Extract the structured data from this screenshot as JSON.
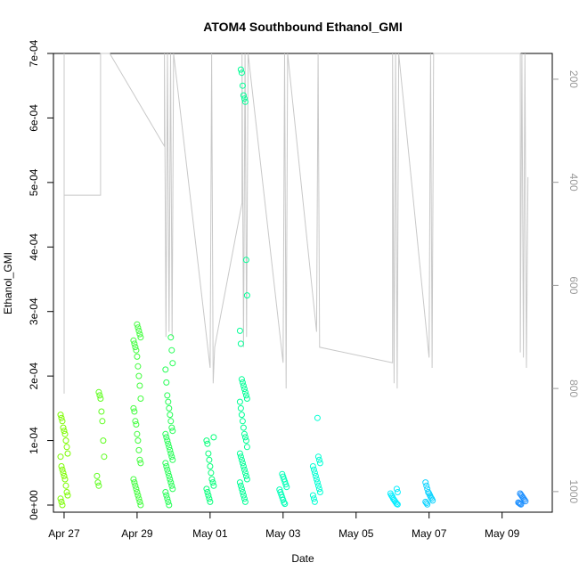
{
  "chart_data": {
    "type": "scatter",
    "title": "ATOM4 Southbound Ethanol_GMI",
    "xlabel": "Date",
    "ylabel": "Ethanol_GMI",
    "x_ticks": [
      {
        "label": "Apr 27",
        "value": "2018-04-27"
      },
      {
        "label": "Apr 29",
        "value": "2018-04-29"
      },
      {
        "label": "May 01",
        "value": "2018-05-01"
      },
      {
        "label": "May 03",
        "value": "2018-05-03"
      },
      {
        "label": "May 05",
        "value": "2018-05-05"
      },
      {
        "label": "May 07",
        "value": "2018-05-07"
      },
      {
        "label": "May 09",
        "value": "2018-05-09"
      }
    ],
    "xlim": [
      "2018-04-26T17:00",
      "2018-05-10T09:00"
    ],
    "ylim": [
      0,
      0.0007
    ],
    "y_ticks": [
      {
        "label": "0e+00",
        "value": 0
      },
      {
        "label": "1e-04",
        "value": 0.0001
      },
      {
        "label": "2e-04",
        "value": 0.0002
      },
      {
        "label": "3e-04",
        "value": 0.0003
      },
      {
        "label": "4e-04",
        "value": 0.0004
      },
      {
        "label": "5e-04",
        "value": 0.0005
      },
      {
        "label": "6e-04",
        "value": 0.0006
      },
      {
        "label": "7e-04",
        "value": 0.0007
      }
    ],
    "y2lim": [
      1040,
      150
    ],
    "y2_reversed": true,
    "y2_ticks": [
      {
        "label": "200",
        "value": 200
      },
      {
        "label": "400",
        "value": 400
      },
      {
        "label": "600",
        "value": 600
      },
      {
        "label": "800",
        "value": 800
      },
      {
        "label": "1000",
        "value": 1000
      }
    ],
    "grid": false,
    "marker": "open-circle",
    "point_colors": [
      "#7CFC00",
      "#00FF7F",
      "#00FFFF",
      "#1E90FF"
    ],
    "secondary_line_color": "#c8c8c8",
    "point_clusters": [
      {
        "time": "2018-04-27T00:00",
        "values": [
          0.00014,
          0.000135,
          0.00013,
          0.00012,
          0.000115,
          0.00011,
          0.0001,
          9e-05,
          8e-05,
          7.5e-05,
          6e-05,
          5.5e-05,
          5e-05,
          4.5e-05,
          4e-05,
          3e-05,
          2e-05,
          1.5e-05,
          1e-05,
          5e-06,
          0.0
        ]
      },
      {
        "time": "2018-04-28T00:00",
        "values": [
          0.000175,
          0.00017,
          0.000165,
          0.000145,
          0.00013,
          0.0001,
          7.5e-05,
          4.5e-05,
          3.5e-05,
          3e-05
        ]
      },
      {
        "time": "2018-04-29T00:00",
        "values": [
          0.00028,
          0.000275,
          0.00027,
          0.000265,
          0.00026,
          0.000255,
          0.00025,
          0.000245,
          0.00024,
          0.00023,
          0.000215,
          0.0002,
          0.000185,
          0.000165,
          0.00015,
          0.000145,
          0.00013,
          0.000125,
          0.00011,
          0.0001,
          8.5e-05,
          7e-05,
          6.5e-05,
          4e-05,
          3.5e-05,
          3e-05,
          2.5e-05,
          2e-05,
          1.5e-05,
          1e-05,
          5e-06,
          0.0
        ]
      },
      {
        "time": "2018-04-29T21:00",
        "values": [
          0.00026,
          0.00024,
          0.00022,
          0.00021,
          0.00019,
          0.00017,
          0.00016,
          0.00015,
          0.00014,
          0.00013,
          0.00012,
          0.000115,
          0.00011,
          0.000105,
          0.0001,
          9.5e-05,
          9e-05,
          8.5e-05,
          8e-05,
          7.5e-05,
          7e-05,
          6.5e-05,
          6e-05,
          5.5e-05,
          5e-05,
          4.5e-05,
          4e-05,
          3.5e-05,
          3e-05,
          2.5e-05,
          2e-05,
          1.5e-05,
          1e-05,
          5e-06,
          0.0
        ]
      },
      {
        "time": "2018-05-01T00:00",
        "values": [
          0.000105,
          0.0001,
          9.5e-05,
          8e-05,
          7e-05,
          6e-05,
          5e-05,
          4e-05,
          3.5e-05,
          3e-05,
          2.5e-05,
          2e-05,
          1.5e-05,
          1e-05,
          5e-06
        ]
      },
      {
        "time": "2018-05-01T22:00",
        "values": [
          0.000675,
          0.00067,
          0.00065,
          0.000635,
          0.00063,
          0.000625,
          0.00038,
          0.000325,
          0.00027,
          0.00025,
          0.000195,
          0.00019,
          0.000185,
          0.00018,
          0.000175,
          0.00017,
          0.000165,
          0.00016,
          0.00015,
          0.00014,
          0.00013,
          0.00012,
          0.00011,
          0.000105,
          0.0001,
          9e-05,
          8e-05,
          7.5e-05,
          7e-05,
          6.5e-05,
          6e-05,
          5.5e-05,
          5e-05,
          4.5e-05,
          4e-05,
          3.5e-05,
          3e-05,
          2.5e-05,
          2e-05,
          1.5e-05,
          1e-05,
          5e-06
        ]
      },
      {
        "time": "2018-05-03T00:00",
        "values": [
          4.8e-05,
          4.4e-05,
          4e-05,
          3.6e-05,
          3.2e-05,
          2.8e-05,
          2.4e-05,
          2e-05,
          1.6e-05,
          1.2e-05,
          8e-06,
          4e-06,
          2e-06
        ]
      },
      {
        "time": "2018-05-03T22:00",
        "values": [
          0.000135,
          7.5e-05,
          7e-05,
          6.5e-05,
          6e-05,
          5.5e-05,
          5e-05,
          4.5e-05,
          4e-05,
          3.5e-05,
          3e-05,
          2.5e-05,
          2e-05,
          1.5e-05,
          1e-05,
          5e-06
        ]
      },
      {
        "time": "2018-05-06T01:00",
        "values": [
          2.5e-05,
          2e-05,
          1.8e-05,
          1.5e-05,
          1.3e-05,
          1e-05,
          8e-06,
          6e-06,
          4e-06,
          2e-06,
          1e-06
        ]
      },
      {
        "time": "2018-05-07T00:00",
        "values": [
          3.5e-05,
          3e-05,
          2.5e-05,
          2e-05,
          1.8e-05,
          1.5e-05,
          1.2e-05,
          1e-05,
          7e-06,
          5e-06,
          3e-06,
          1e-06
        ]
      },
      {
        "time": "2018-05-09T13:00",
        "values": [
          1.8e-05,
          1.6e-05,
          1.4e-05,
          1.2e-05,
          1e-05,
          8e-06,
          6e-06,
          4e-06,
          3e-06,
          2e-06,
          1e-06
        ]
      }
    ],
    "secondary_path": [
      [
        "2018-04-27T00:00",
        150
      ],
      [
        "2018-04-27T00:00",
        810
      ],
      [
        "2018-04-27T00:00",
        150
      ],
      [
        "2018-04-27T00:00",
        425
      ],
      [
        "2018-04-28T00:00",
        425
      ],
      [
        "2018-04-28T00:00",
        150
      ],
      [
        "2018-04-28T06:00",
        150
      ],
      [
        "2018-04-29T18:00",
        330
      ],
      [
        "2018-04-29T18:00",
        150
      ],
      [
        "2018-04-29T19:00",
        700
      ],
      [
        "2018-04-29T20:00",
        150
      ],
      [
        "2018-04-29T21:00",
        690
      ],
      [
        "2018-04-29T22:00",
        150
      ],
      [
        "2018-04-29T23:00",
        700
      ],
      [
        "2018-04-30T00:00",
        150
      ],
      [
        "2018-05-01T00:00",
        760
      ],
      [
        "2018-05-01T01:00",
        150
      ],
      [
        "2018-05-01T02:00",
        790
      ],
      [
        "2018-05-01T03:00",
        720
      ],
      [
        "2018-05-01T21:00",
        440
      ],
      [
        "2018-05-01T21:00",
        150
      ],
      [
        "2018-05-01T22:00",
        720
      ],
      [
        "2018-05-01T23:00",
        150
      ],
      [
        "2018-05-02T00:00",
        700
      ],
      [
        "2018-05-02T01:00",
        150
      ],
      [
        "2018-05-03T00:00",
        750
      ],
      [
        "2018-05-03T01:00",
        150
      ],
      [
        "2018-05-03T02:00",
        800
      ],
      [
        "2018-05-03T03:00",
        150
      ],
      [
        "2018-05-03T22:00",
        690
      ],
      [
        "2018-05-03T23:00",
        150
      ],
      [
        "2018-05-04T00:00",
        720
      ],
      [
        "2018-05-06T00:00",
        750
      ],
      [
        "2018-05-06T00:00",
        150
      ],
      [
        "2018-05-06T01:00",
        790
      ],
      [
        "2018-05-06T02:00",
        150
      ],
      [
        "2018-05-06T03:00",
        800
      ],
      [
        "2018-05-06T04:00",
        150
      ],
      [
        "2018-05-07T00:00",
        740
      ],
      [
        "2018-05-07T01:00",
        150
      ],
      [
        "2018-05-07T02:00",
        760
      ],
      [
        "2018-05-07T03:00",
        150
      ],
      [
        "2018-05-09T12:00",
        150
      ],
      [
        "2018-05-09T12:00",
        730
      ],
      [
        "2018-05-09T13:00",
        150
      ],
      [
        "2018-05-09T14:00",
        740
      ],
      [
        "2018-05-09T15:00",
        150
      ],
      [
        "2018-05-09T16:00",
        760
      ],
      [
        "2018-05-09T17:00",
        390
      ]
    ]
  }
}
